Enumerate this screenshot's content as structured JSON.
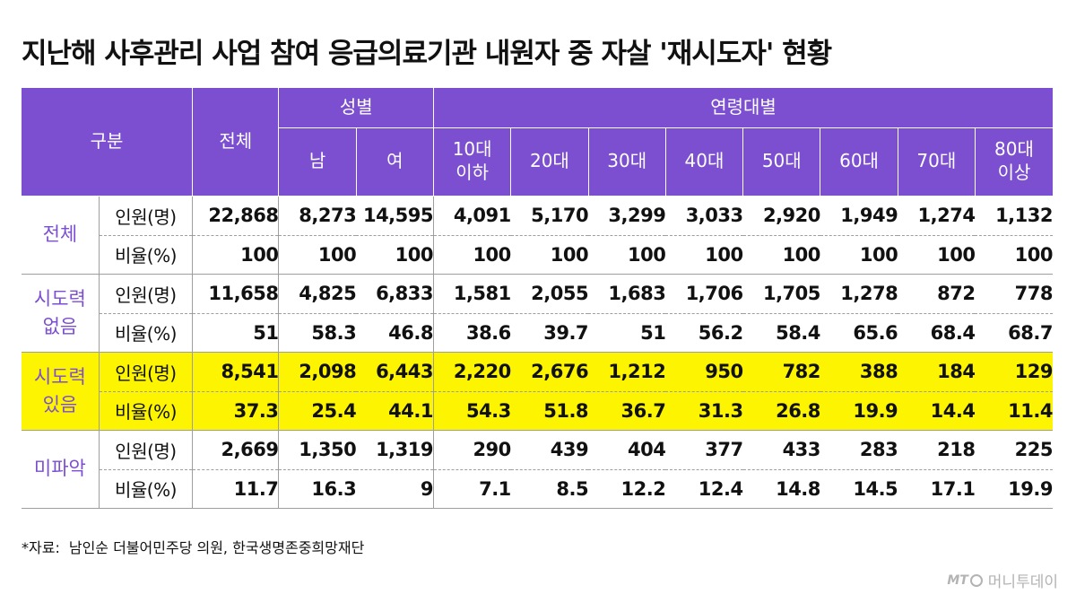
{
  "title": "지난해 사후관리 사업 참여 응급의료기관 내원자 중 자살 '재시도자' 현황",
  "chart_data": {
    "type": "table",
    "headers": {
      "group": "구분",
      "total": "전체",
      "sex_group": "성별",
      "sex": [
        "남",
        "여"
      ],
      "age_group": "연령대별",
      "ages": [
        {
          "line1": "10대",
          "line2": "이하"
        },
        {
          "line1": "20대",
          "line2": ""
        },
        {
          "line1": "30대",
          "line2": ""
        },
        {
          "line1": "40대",
          "line2": ""
        },
        {
          "line1": "50대",
          "line2": ""
        },
        {
          "line1": "60대",
          "line2": ""
        },
        {
          "line1": "70대",
          "line2": ""
        },
        {
          "line1": "80대",
          "line2": "이상"
        }
      ]
    },
    "groups": [
      {
        "name_line1": "전체",
        "name_line2": "",
        "highlight": false,
        "rows": [
          {
            "label": "인원(명)",
            "values": [
              "22,868",
              "8,273",
              "14,595",
              "4,091",
              "5,170",
              "3,299",
              "3,033",
              "2,920",
              "1,949",
              "1,274",
              "1,132"
            ]
          },
          {
            "label": "비율(%)",
            "values": [
              "100",
              "100",
              "100",
              "100",
              "100",
              "100",
              "100",
              "100",
              "100",
              "100",
              "100"
            ]
          }
        ]
      },
      {
        "name_line1": "시도력",
        "name_line2": "없음",
        "highlight": false,
        "rows": [
          {
            "label": "인원(명)",
            "values": [
              "11,658",
              "4,825",
              "6,833",
              "1,581",
              "2,055",
              "1,683",
              "1,706",
              "1,705",
              "1,278",
              "872",
              "778"
            ]
          },
          {
            "label": "비율(%)",
            "values": [
              "51",
              "58.3",
              "46.8",
              "38.6",
              "39.7",
              "51",
              "56.2",
              "58.4",
              "65.6",
              "68.4",
              "68.7"
            ]
          }
        ]
      },
      {
        "name_line1": "시도력",
        "name_line2": "있음",
        "highlight": true,
        "rows": [
          {
            "label": "인원(명)",
            "values": [
              "8,541",
              "2,098",
              "6,443",
              "2,220",
              "2,676",
              "1,212",
              "950",
              "782",
              "388",
              "184",
              "129"
            ]
          },
          {
            "label": "비율(%)",
            "values": [
              "37.3",
              "25.4",
              "44.1",
              "54.3",
              "51.8",
              "36.7",
              "31.3",
              "26.8",
              "19.9",
              "14.4",
              "11.4"
            ]
          }
        ]
      },
      {
        "name_line1": "미파악",
        "name_line2": "",
        "highlight": false,
        "rows": [
          {
            "label": "인원(명)",
            "values": [
              "2,669",
              "1,350",
              "1,319",
              "290",
              "439",
              "404",
              "377",
              "433",
              "283",
              "218",
              "225"
            ]
          },
          {
            "label": "비율(%)",
            "values": [
              "11.7",
              "16.3",
              "9",
              "7.1",
              "8.5",
              "12.2",
              "12.4",
              "14.8",
              "14.5",
              "17.1",
              "19.9"
            ]
          }
        ]
      }
    ]
  },
  "colors": {
    "header_bg": "#7b4fd0",
    "group_text": "#7b4fd0",
    "highlight_bg": "#fcf400"
  },
  "source": {
    "label": "*자료:",
    "text": "남인순 더불어민주당 의원, 한국생명존중희망재단"
  },
  "credit": {
    "logo": "MT",
    "text": "머니투데이"
  }
}
